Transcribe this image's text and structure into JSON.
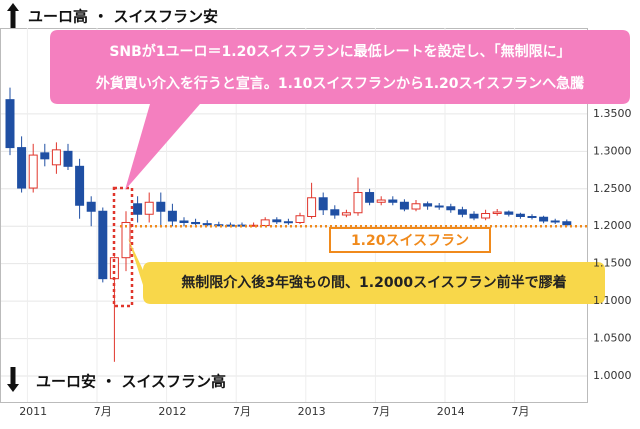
{
  "chart_data": {
    "type": "candlestick",
    "categories": [
      null,
      null,
      "2011",
      null,
      null,
      null,
      null,
      null,
      "7月",
      null,
      null,
      null,
      null,
      null,
      "2012",
      null,
      null,
      null,
      null,
      null,
      "7月",
      null,
      null,
      null,
      null,
      null,
      "2013",
      null,
      null,
      null,
      null,
      null,
      "7月",
      null,
      null,
      null,
      null,
      null,
      "2014",
      null,
      null,
      null,
      null,
      null,
      "7月",
      null,
      null,
      null,
      null
    ],
    "open": [
      1.369,
      1.305,
      1.251,
      1.298,
      1.282,
      1.3,
      1.28,
      1.232,
      1.22,
      1.13,
      1.158,
      1.23,
      1.216,
      1.232,
      1.22,
      1.207,
      1.205,
      1.2035,
      1.202,
      1.2015,
      1.2015,
      1.201,
      1.201,
      1.2085,
      1.206,
      1.205,
      1.213,
      1.238,
      1.222,
      1.215,
      1.218,
      1.245,
      1.232,
      1.235,
      1.232,
      1.223,
      1.23,
      1.227,
      1.226,
      1.222,
      1.216,
      1.211,
      1.217,
      1.219,
      1.216,
      1.213,
      1.212,
      1.207,
      1.206
    ],
    "high": [
      1.385,
      1.32,
      1.31,
      1.31,
      1.312,
      1.31,
      1.29,
      1.24,
      1.225,
      1.16,
      1.22,
      1.24,
      1.245,
      1.245,
      1.23,
      1.212,
      1.21,
      1.208,
      1.206,
      1.205,
      1.205,
      1.205,
      1.212,
      1.212,
      1.21,
      1.218,
      1.258,
      1.245,
      1.228,
      1.222,
      1.265,
      1.25,
      1.24,
      1.24,
      1.236,
      1.235,
      1.233,
      1.231,
      1.23,
      1.226,
      1.22,
      1.222,
      1.223,
      1.221,
      1.218,
      1.216,
      1.214,
      1.21,
      1.209
    ],
    "low": [
      1.295,
      1.245,
      1.245,
      1.28,
      1.27,
      1.275,
      1.21,
      1.2,
      1.125,
      1.019,
      1.14,
      1.205,
      1.205,
      1.2,
      1.2,
      1.2,
      1.2,
      1.2,
      1.2,
      1.2,
      1.2,
      1.2,
      1.2,
      1.203,
      1.202,
      1.203,
      1.21,
      1.215,
      1.21,
      1.212,
      1.214,
      1.228,
      1.228,
      1.228,
      1.22,
      1.22,
      1.222,
      1.222,
      1.218,
      1.212,
      1.208,
      1.208,
      1.214,
      1.213,
      1.21,
      1.209,
      1.204,
      1.203,
      1.2
    ],
    "close": [
      1.305,
      1.251,
      1.295,
      1.29,
      1.302,
      1.28,
      1.228,
      1.22,
      1.13,
      1.158,
      1.205,
      1.216,
      1.232,
      1.22,
      1.207,
      1.205,
      1.2035,
      1.202,
      1.2015,
      1.201,
      1.2012,
      1.2013,
      1.2085,
      1.206,
      1.2052,
      1.214,
      1.238,
      1.222,
      1.215,
      1.218,
      1.245,
      1.232,
      1.235,
      1.232,
      1.223,
      1.23,
      1.227,
      1.226,
      1.222,
      1.216,
      1.211,
      1.217,
      1.219,
      1.216,
      1.213,
      1.212,
      1.207,
      1.206,
      1.202
    ],
    "up_color": "#e0352b",
    "down_color": "#1f4fa3",
    "ylim": [
      0.968,
      1.462
    ],
    "yticks": [
      {
        "value": 1.0,
        "label": "1.0000"
      },
      {
        "value": 1.05,
        "label": "1.0500"
      },
      {
        "value": 1.1,
        "label": "1.1000"
      },
      {
        "value": 1.15,
        "label": "1.1500"
      },
      {
        "value": 1.2,
        "label": "1.2000"
      },
      {
        "value": 1.25,
        "label": "1.2500"
      },
      {
        "value": 1.3,
        "label": "1.3000"
      },
      {
        "value": 1.35,
        "label": "1.3500"
      }
    ],
    "grid": true,
    "reference_line": {
      "value": 1.2,
      "label": "1.20スイスフラン",
      "color": "#f08a1c"
    },
    "top_label": "ユーロ高 ・ スイスフラン安",
    "bottom_label": "ユーロ安 ・ スイスフラン高",
    "callout_lines": [
      "SNBが1ユーロ＝1.20スイスフランに最低レートを設定し、「無制限に」",
      "外貨買い介入を行うと宣言。1.10スイスフランから1.20スイスフランへ急騰"
    ],
    "note": "無制限介入後3年強もの間、1.2000スイスフラン前半で膠着"
  }
}
